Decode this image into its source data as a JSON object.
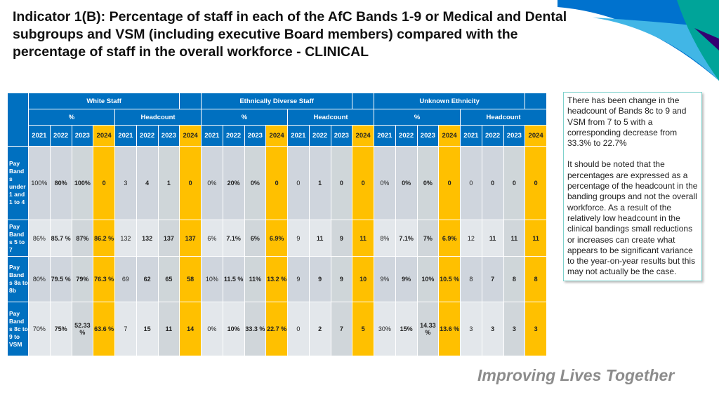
{
  "title": "Indicator 1(B): Percentage of staff in each of the AfC Bands 1-9 or Medical and Dental subgroups and VSM (including executive Board members) compared with the percentage of staff in the overall workforce -  CLINICAL",
  "colors": {
    "header": "#0070c0",
    "highlight_2024": "#ffc000",
    "note_border": "#7fd1cc"
  },
  "table": {
    "groups": [
      "White Staff",
      "Ethnically Diverse Staff",
      "Unknown Ethnicity"
    ],
    "subgroups": [
      "%",
      "Headcount"
    ],
    "years": [
      "2021",
      "2022",
      "2023",
      "2024"
    ],
    "rows": [
      {
        "label": "Pay Band s under 1 and 1 to 4",
        "values": [
          "100%",
          "80%",
          "100%",
          "0",
          "3",
          "4",
          "1",
          "0",
          "0%",
          "20%",
          "0%",
          "0",
          "0",
          "1",
          "0",
          "0",
          "0%",
          "0%",
          "0%",
          "0",
          "0",
          "0",
          "0",
          "0"
        ]
      },
      {
        "label": "Pay Band s 5 to 7",
        "values": [
          "86%",
          "85.7 %",
          "87%",
          "86.2 %",
          "132",
          "132",
          "137",
          "137",
          "6%",
          "7.1%",
          "6%",
          "6.9%",
          "9",
          "11",
          "9",
          "11",
          "8%",
          "7.1%",
          "7%",
          "6.9%",
          "12",
          "11",
          "11",
          "11"
        ]
      },
      {
        "label": "Pay Band s 8a to 8b",
        "values": [
          "80%",
          "79.5 %",
          "79%",
          "76.3 %",
          "69",
          "62",
          "65",
          "58",
          "10%",
          "11.5 %",
          "11%",
          "13.2 %",
          "9",
          "9",
          "9",
          "10",
          "9%",
          "9%",
          "10%",
          "10.5 %",
          "8",
          "7",
          "8",
          "8"
        ]
      },
      {
        "label": "Pay Band s 8c to 9 to VSM",
        "values": [
          "70%",
          "75%",
          "52.33 %",
          "63.6 %",
          "7",
          "15",
          "11",
          "14",
          "0%",
          "10%",
          "33.3 %",
          "22.7 %",
          "0",
          "2",
          "7",
          "5",
          "30%",
          "15%",
          "14.33 %",
          "13.6 %",
          "3",
          "3",
          "3",
          "3"
        ]
      }
    ]
  },
  "note": {
    "p1": "There has been change in the headcount of Bands 8c to 9 and VSM from 7 to 5 with a corresponding decrease from 33.3% to 22.7%",
    "p2": "It should be noted that the percentages are expressed as a percentage of the headcount in the banding groups and not the overall workforce. As a result of the relatively low headcount in the clinical bandings small reductions or increases can create what appears to be significant variance to the year-on-year results but this may not actually be the case."
  },
  "tagline": "Improving Lives Together"
}
